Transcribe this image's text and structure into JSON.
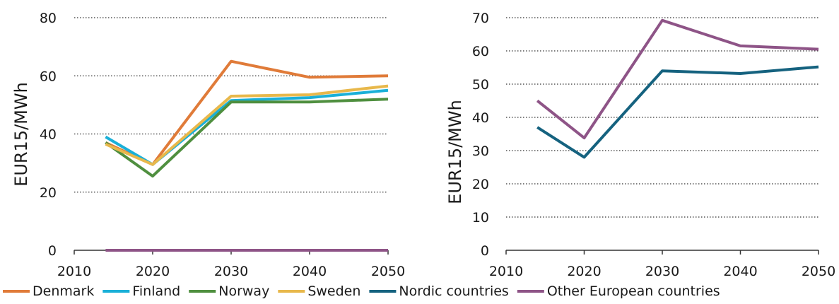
{
  "chart_data": [
    {
      "type": "line",
      "ylabel": "EUR15/MWh",
      "xlim": [
        2010,
        2050
      ],
      "ylim": [
        0,
        80
      ],
      "x_ticks": [
        2010,
        2020,
        2030,
        2040,
        2050
      ],
      "y_ticks": [
        0,
        20,
        40,
        60,
        80
      ],
      "grid": "horizontal-dotted",
      "x": [
        2014,
        2020,
        2030,
        2040,
        2050
      ],
      "series": [
        {
          "name": "Denmark",
          "color": "#e07b39",
          "values": [
            37,
            29.5,
            65,
            59.5,
            60
          ]
        },
        {
          "name": "Finland",
          "color": "#1ab0d8",
          "values": [
            39,
            29.5,
            51.5,
            52.5,
            55
          ]
        },
        {
          "name": "Norway",
          "color": "#4f8f3f",
          "values": [
            37,
            25.5,
            51,
            51,
            52
          ]
        },
        {
          "name": "Sweden",
          "color": "#e8b84b",
          "values": [
            36.5,
            29.5,
            53,
            53.5,
            56.5
          ]
        },
        {
          "name": "Other European countries",
          "color": "#8e5487",
          "values": [
            0,
            0,
            0,
            0,
            0
          ]
        }
      ]
    },
    {
      "type": "line",
      "ylabel": "EUR15/MWh",
      "xlim": [
        2010,
        2050
      ],
      "ylim": [
        0,
        70
      ],
      "x_ticks": [
        2010,
        2020,
        2030,
        2040,
        2050
      ],
      "y_ticks": [
        0,
        10,
        20,
        30,
        40,
        50,
        60,
        70
      ],
      "grid": "horizontal-dotted",
      "x": [
        2014,
        2020,
        2030,
        2040,
        2050
      ],
      "series": [
        {
          "name": "Nordic countries",
          "color": "#15627f",
          "values": [
            37,
            28,
            54,
            53.2,
            55.2
          ]
        },
        {
          "name": "Other European countries",
          "color": "#8e5487",
          "values": [
            45,
            33.8,
            69.2,
            61.5,
            60.5
          ]
        }
      ]
    }
  ],
  "legend": {
    "placement": "bottom",
    "items": [
      {
        "name": "Denmark",
        "color": "#e07b39"
      },
      {
        "name": "Finland",
        "color": "#1ab0d8"
      },
      {
        "name": "Norway",
        "color": "#4f8f3f"
      },
      {
        "name": "Sweden",
        "color": "#e8b84b"
      },
      {
        "name": "Nordic countries",
        "color": "#15627f"
      },
      {
        "name": "Other European countries",
        "color": "#8e5487"
      }
    ]
  }
}
